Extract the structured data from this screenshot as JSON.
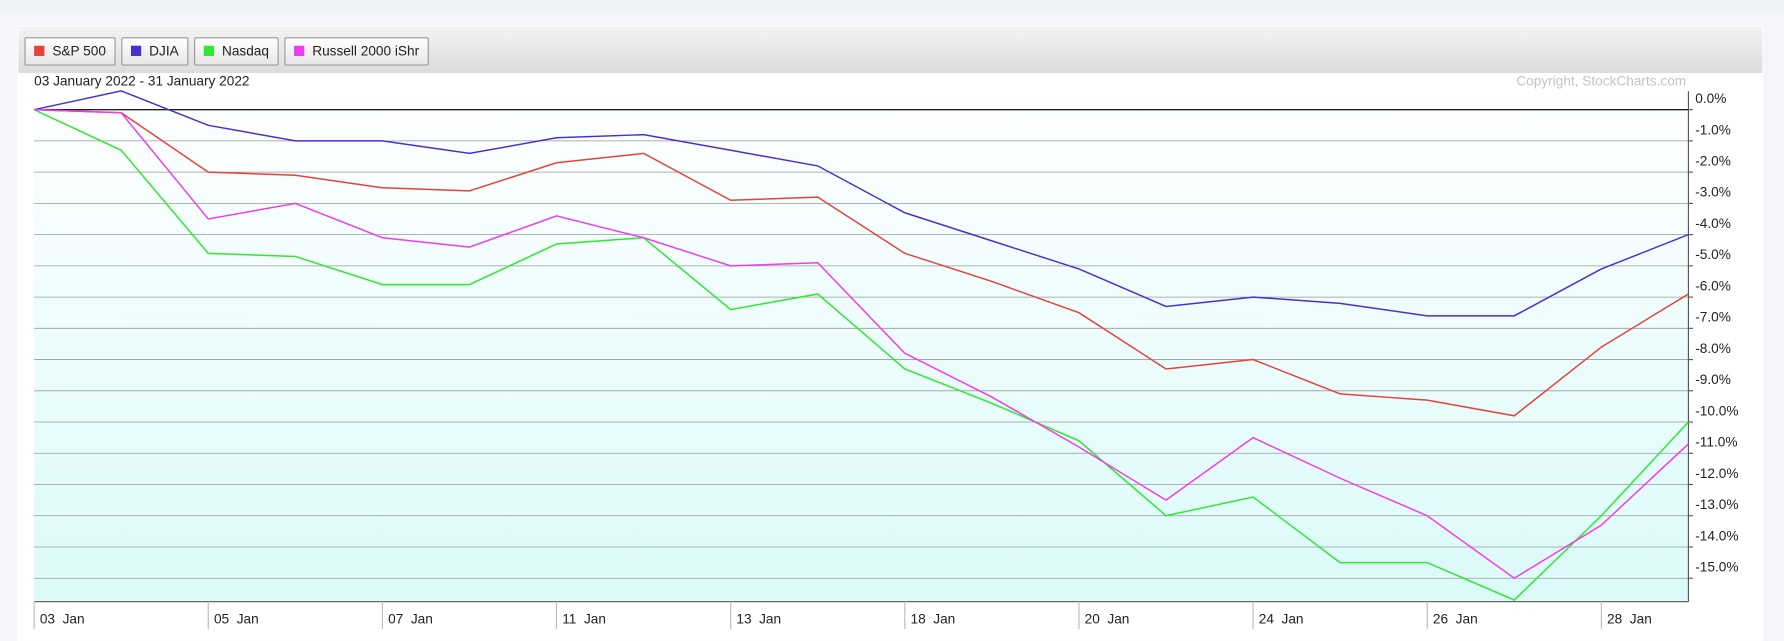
{
  "chart_data": {
    "type": "line",
    "title": "03 January 2022 - 31 January 2022",
    "annotation": "Copyright, StockCharts.com",
    "categories": [
      "03  Jan",
      null,
      "05  Jan",
      null,
      "07  Jan",
      null,
      "11  Jan",
      null,
      "13  Jan",
      null,
      "18  Jan",
      null,
      "20  Jan",
      null,
      "24  Jan",
      null,
      "26  Jan",
      null,
      "28  Jan",
      null
    ],
    "series": [
      {
        "name": "S&P 500",
        "color": "#e8413a",
        "values": [
          0,
          -0.1,
          -2.0,
          -2.1,
          -2.5,
          -2.6,
          -1.7,
          -1.4,
          -2.9,
          -2.8,
          -4.6,
          -5.5,
          -6.5,
          -8.3,
          -8.0,
          -9.1,
          -9.3,
          -9.8,
          -7.6,
          -5.9
        ]
      },
      {
        "name": "DJIA",
        "color": "#4a2fd0",
        "values": [
          0,
          0.6,
          -0.5,
          -1.0,
          -1.0,
          -1.4,
          -0.9,
          -0.8,
          -1.3,
          -1.8,
          -3.3,
          -4.2,
          -5.1,
          -6.3,
          -6.0,
          -6.2,
          -6.6,
          -6.6,
          -5.1,
          -4.0
        ]
      },
      {
        "name": "Nasdaq",
        "color": "#2fe82f",
        "values": [
          0,
          -1.3,
          -4.6,
          -4.7,
          -5.6,
          -5.6,
          -4.3,
          -4.1,
          -6.4,
          -5.9,
          -8.3,
          -9.4,
          -10.6,
          -13.0,
          -12.4,
          -14.5,
          -14.5,
          -15.7,
          -13.0,
          -10.0
        ]
      },
      {
        "name": "Russell 2000 iShr",
        "color": "#f03cf0",
        "values": [
          0,
          -0.1,
          -3.5,
          -3.0,
          -4.1,
          -4.4,
          -3.4,
          -4.1,
          -5.0,
          -4.9,
          -7.8,
          -9.2,
          -10.8,
          -12.5,
          -10.5,
          -11.8,
          -13.0,
          -15.0,
          -13.3,
          -10.7
        ]
      }
    ],
    "ylim": [
      -15.75,
      1.1
    ],
    "yticks": [
      {
        "value": 0,
        "label": "0.0%"
      },
      {
        "value": -1,
        "label": "-1.0%"
      },
      {
        "value": -2,
        "label": "-2.0%"
      },
      {
        "value": -3,
        "label": "-3.0%"
      },
      {
        "value": -4,
        "label": "-4.0%"
      },
      {
        "value": -5,
        "label": "-5.0%"
      },
      {
        "value": -6,
        "label": "-6.0%"
      },
      {
        "value": -7,
        "label": "-7.0%"
      },
      {
        "value": -8,
        "label": "-8.0%"
      },
      {
        "value": -9,
        "label": "-9.0%"
      },
      {
        "value": -10,
        "label": "-10.0%"
      },
      {
        "value": -11,
        "label": "-11.0%"
      },
      {
        "value": -12,
        "label": "-12.0%"
      },
      {
        "value": -13,
        "label": "-13.0%"
      },
      {
        "value": -14,
        "label": "-14.0%"
      },
      {
        "value": -15,
        "label": "-15.0%"
      }
    ],
    "grid": true,
    "legend": "top-left"
  }
}
